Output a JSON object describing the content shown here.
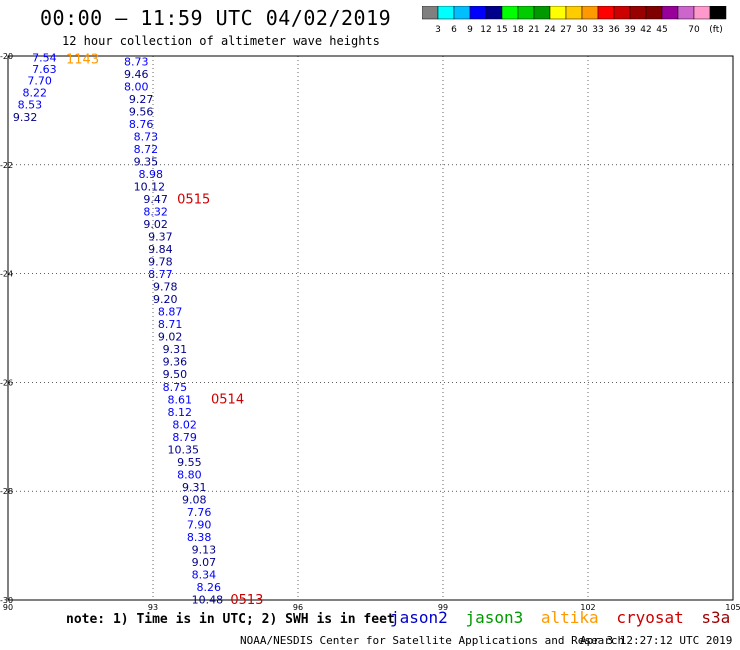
{
  "header": {
    "title": "00:00 – 11:59 UTC 04/02/2019",
    "subtitle": "12 hour collection of altimeter wave heights"
  },
  "colorbar": {
    "colors": [
      "#808080",
      "#00ffff",
      "#00bfff",
      "#0000ff",
      "#00008b",
      "#00ff00",
      "#00cc00",
      "#009900",
      "#ffff00",
      "#ffcc00",
      "#ff9900",
      "#ff0000",
      "#cc0000",
      "#990000",
      "#800000",
      "#990099",
      "#cc66cc",
      "#ff99cc",
      "#000000"
    ],
    "labels": [
      "3",
      "6",
      "9",
      "12",
      "15",
      "18",
      "21",
      "24",
      "27",
      "30",
      "33",
      "36",
      "39",
      "42",
      "45",
      "70"
    ],
    "unit": "(ft)"
  },
  "chart_data": {
    "type": "scatter",
    "xlim": [
      90,
      105
    ],
    "ylim": [
      -30,
      -20
    ],
    "xticks": [
      "90",
      "93",
      "96",
      "99",
      "102",
      "105"
    ],
    "yticks": [
      "-20",
      "-22",
      "-24",
      "-26",
      "-28",
      "-30"
    ],
    "grid": true,
    "tracks": [
      {
        "satellite": "altika",
        "time": "1143",
        "time_at": [
          91.2,
          -20.05
        ],
        "points": [
          [
            90.5,
            -20.03,
            "7.54"
          ],
          [
            90.5,
            -20.24,
            "7.63"
          ],
          [
            90.4,
            -20.45,
            "7.70"
          ],
          [
            90.3,
            -20.67,
            "8.22"
          ],
          [
            90.2,
            -20.89,
            "8.53"
          ],
          [
            90.1,
            -21.12,
            "9.32"
          ]
        ]
      },
      {
        "satellite": "cryosat",
        "time": "0515",
        "time_at": [
          93.5,
          -22.62
        ],
        "points": [
          [
            92.4,
            -20.1,
            "8.73"
          ],
          [
            92.4,
            -20.33,
            "9.46"
          ],
          [
            92.4,
            -20.56,
            "8.00"
          ],
          [
            92.5,
            -20.79,
            "9.27"
          ],
          [
            92.5,
            -21.02,
            "9.56"
          ],
          [
            92.5,
            -21.25,
            "8.76"
          ],
          [
            92.6,
            -21.48,
            "8.73"
          ],
          [
            92.6,
            -21.71,
            "8.72"
          ],
          [
            92.6,
            -21.94,
            "9.35"
          ],
          [
            92.7,
            -22.17,
            "8.98"
          ],
          [
            92.6,
            -22.4,
            "10.12"
          ],
          [
            92.8,
            -22.63,
            "9.47"
          ],
          [
            92.8,
            -22.86,
            "8.32"
          ],
          [
            92.8,
            -23.09,
            "9.02"
          ],
          [
            92.9,
            -23.32,
            "9.37"
          ],
          [
            92.9,
            -23.55,
            "9.84"
          ],
          [
            92.9,
            -23.78,
            "9.78"
          ],
          [
            92.9,
            -24.01,
            "8.77"
          ],
          [
            93.0,
            -24.24,
            "9.78"
          ],
          [
            93.0,
            -24.47,
            "9.20"
          ],
          [
            93.1,
            -24.7,
            "8.87"
          ],
          [
            93.1,
            -24.93,
            "8.71"
          ],
          [
            93.1,
            -25.16,
            "9.02"
          ],
          [
            93.2,
            -25.39,
            "9.31"
          ],
          [
            93.2,
            -25.62,
            "9.36"
          ],
          [
            93.2,
            -25.85,
            "9.50"
          ]
        ]
      },
      {
        "satellite": "cryosat",
        "time": "0514",
        "time_at": [
          94.2,
          -26.3
        ],
        "points": [
          [
            93.2,
            -26.08,
            "8.75"
          ],
          [
            93.3,
            -26.31,
            "8.61"
          ],
          [
            93.3,
            -26.54,
            "8.12"
          ],
          [
            93.4,
            -26.77,
            "8.02"
          ],
          [
            93.4,
            -27.0,
            "8.79"
          ],
          [
            93.3,
            -27.23,
            "10.35"
          ],
          [
            93.5,
            -27.46,
            "9.55"
          ],
          [
            93.5,
            -27.69,
            "8.80"
          ],
          [
            93.6,
            -27.92,
            "9.31"
          ],
          [
            93.6,
            -28.15,
            "9.08"
          ],
          [
            93.7,
            -28.38,
            "7.76"
          ],
          [
            93.7,
            -28.61,
            "7.90"
          ],
          [
            93.7,
            -28.84,
            "8.38"
          ],
          [
            93.8,
            -29.07,
            "9.13"
          ],
          [
            93.8,
            -29.3,
            "9.07"
          ],
          [
            93.8,
            -29.53,
            "8.34"
          ],
          [
            93.9,
            -29.76,
            "8.26"
          ],
          [
            93.8,
            -29.99,
            "10.48"
          ]
        ]
      },
      {
        "satellite": "cryosat",
        "time": "0513",
        "time_at": [
          94.6,
          -29.98
        ],
        "points": []
      }
    ]
  },
  "legend": {
    "jason2": {
      "label": "jason2",
      "color": "#0000cc"
    },
    "jason3": {
      "label": "jason3",
      "color": "#009900"
    },
    "altika": {
      "label": "altika",
      "color": "#ff9900"
    },
    "cryosat": {
      "label": "cryosat",
      "color": "#cc0000"
    },
    "s3a": {
      "label": "s3a",
      "color": "#990000"
    }
  },
  "footer": {
    "note": "note: 1) Time is in UTC; 2) SWH is in feet",
    "credit": "NOAA/NESDIS Center for Satellite Applications and Research",
    "timestamp": "Apr  3 12:27:12 UTC 2019"
  }
}
